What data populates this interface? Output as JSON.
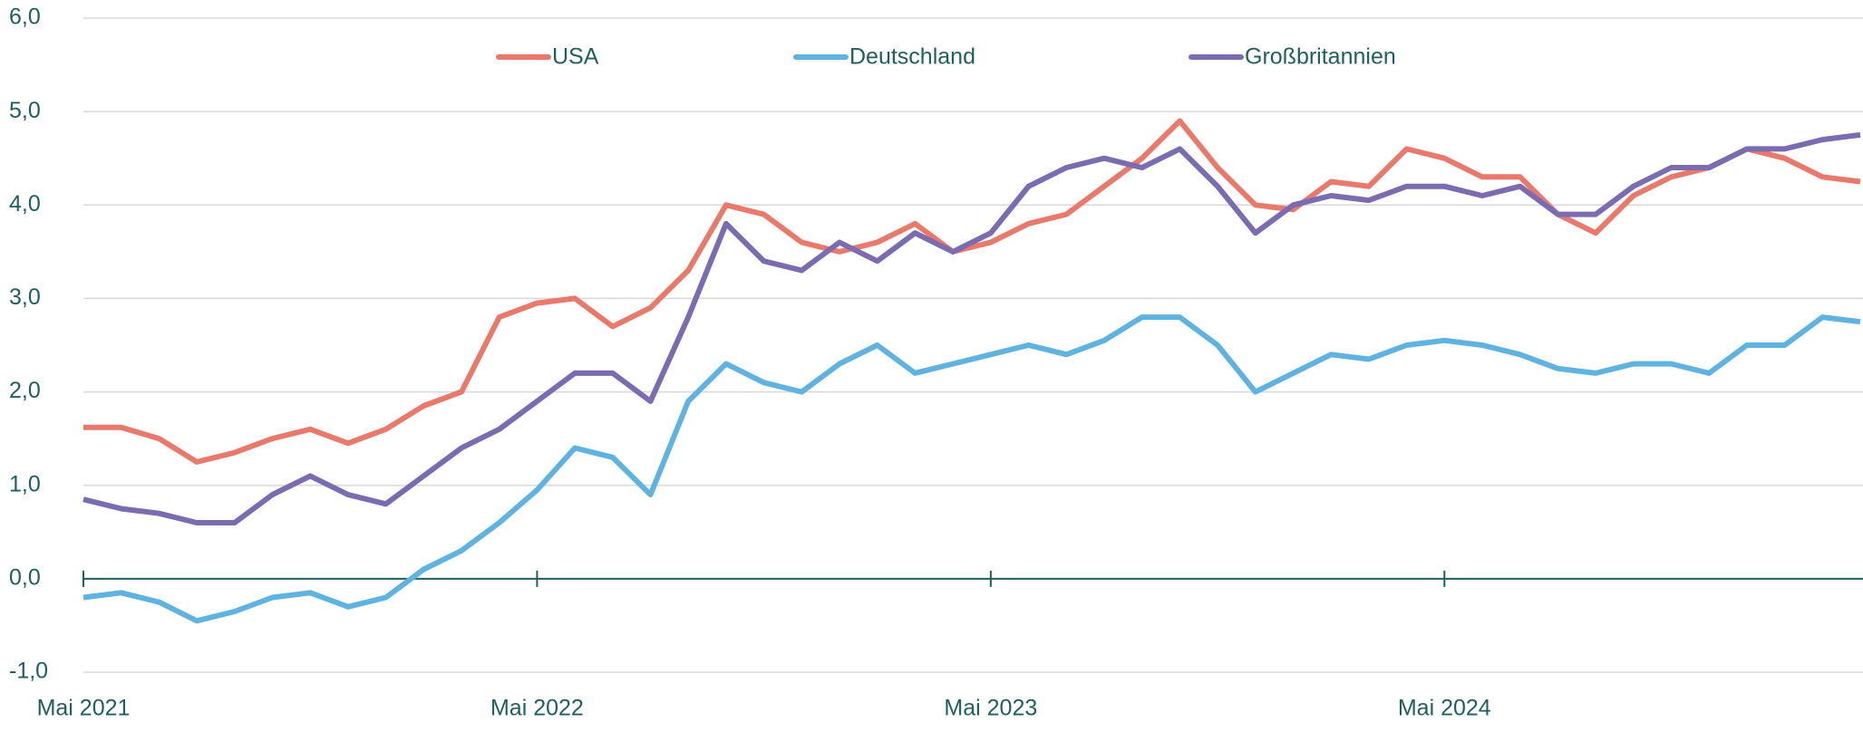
{
  "chart_data": {
    "type": "line",
    "categories": [
      "Mai 2021",
      null,
      null,
      null,
      null,
      null,
      null,
      null,
      null,
      null,
      null,
      null,
      "Mai 2022",
      null,
      null,
      null,
      null,
      null,
      null,
      null,
      null,
      null,
      null,
      null,
      "Mai 2023",
      null,
      null,
      null,
      null,
      null,
      null,
      null,
      null,
      null,
      null,
      null,
      "Mai 2024",
      null,
      null,
      null,
      null,
      null,
      null,
      null,
      null,
      null,
      null,
      null
    ],
    "series": [
      {
        "name": "USA",
        "color": "#e8796b",
        "values": [
          1.62,
          1.62,
          1.5,
          1.25,
          1.35,
          1.5,
          1.6,
          1.45,
          1.6,
          1.85,
          2.0,
          2.8,
          2.95,
          3.0,
          2.7,
          2.9,
          3.3,
          4.0,
          3.9,
          3.6,
          3.5,
          3.6,
          3.8,
          3.5,
          3.6,
          3.8,
          3.9,
          4.2,
          4.5,
          4.9,
          4.4,
          4.0,
          3.95,
          4.25,
          4.2,
          4.6,
          4.5,
          4.3,
          4.3,
          3.9,
          3.7,
          4.1,
          4.3,
          4.4,
          4.6,
          4.5,
          4.3,
          4.25
        ]
      },
      {
        "name": "Deutschland",
        "color": "#5fb3e0",
        "values": [
          -0.2,
          -0.15,
          -0.25,
          -0.45,
          -0.35,
          -0.2,
          -0.15,
          -0.3,
          -0.2,
          0.1,
          0.3,
          0.6,
          0.95,
          1.4,
          1.3,
          0.9,
          1.9,
          2.3,
          2.1,
          2.0,
          2.3,
          2.5,
          2.2,
          2.3,
          2.4,
          2.5,
          2.4,
          2.55,
          2.8,
          2.8,
          2.5,
          2.0,
          2.2,
          2.4,
          2.35,
          2.5,
          2.55,
          2.5,
          2.4,
          2.25,
          2.2,
          2.3,
          2.3,
          2.2,
          2.5,
          2.5,
          2.8,
          2.75
        ]
      },
      {
        "name": "Großbritannien",
        "color": "#7b6bb0",
        "values": [
          0.85,
          0.75,
          0.7,
          0.6,
          0.6,
          0.9,
          1.1,
          0.9,
          0.8,
          1.1,
          1.4,
          1.6,
          1.9,
          2.2,
          2.2,
          1.9,
          2.8,
          3.8,
          3.4,
          3.3,
          3.6,
          3.4,
          3.7,
          3.5,
          3.7,
          4.2,
          4.4,
          4.5,
          4.4,
          4.6,
          4.2,
          3.7,
          4.0,
          4.1,
          4.05,
          4.2,
          4.2,
          4.1,
          4.2,
          3.9,
          3.9,
          4.2,
          4.4,
          4.4,
          4.6,
          4.6,
          4.7,
          4.75
        ]
      }
    ],
    "ylim": [
      -1,
      6
    ],
    "yticks": [
      {
        "value": -1,
        "label": "-1,0"
      },
      {
        "value": 0,
        "label": "0,0"
      },
      {
        "value": 1,
        "label": "1,0"
      },
      {
        "value": 2,
        "label": "2,0"
      },
      {
        "value": 3,
        "label": "3,0"
      },
      {
        "value": 4,
        "label": "4,0"
      },
      {
        "value": 5,
        "label": "5,0"
      },
      {
        "value": 6,
        "label": "6,0"
      }
    ],
    "grid": true,
    "legend": "top"
  }
}
